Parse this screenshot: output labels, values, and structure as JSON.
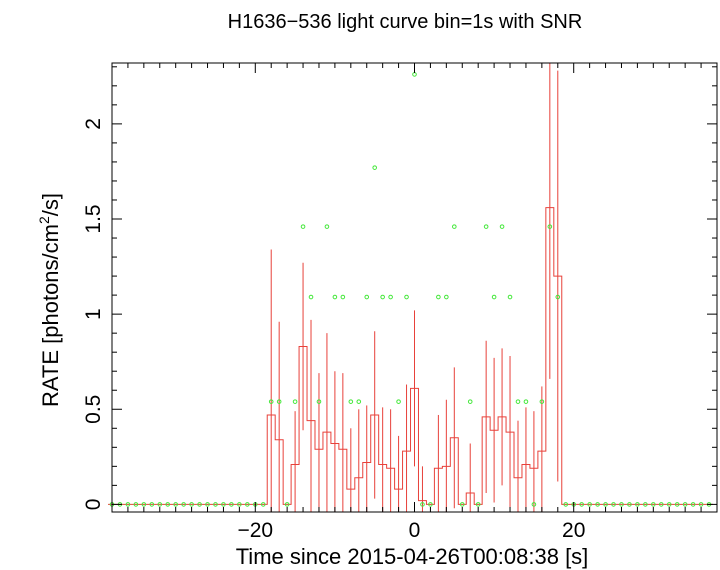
{
  "chart_data": {
    "type": "line",
    "title": "H1636−536 light curve bin=1s with SNR",
    "xlabel": "Time since 2015-04-26T00:08:38 [s]",
    "ylabel_parts": [
      "RATE [photons/cm",
      "2",
      "/s]"
    ],
    "xlim": [
      -38,
      38
    ],
    "ylim": [
      -0.04,
      2.32
    ],
    "x_ticks": [
      -20,
      0,
      20
    ],
    "x_tick_labels": [
      "−20",
      "0",
      "20"
    ],
    "y_ticks": [
      0,
      0.5,
      1,
      1.5,
      2
    ],
    "y_tick_labels": [
      "0",
      "0.5",
      "1",
      "1.5",
      "2"
    ],
    "x_minor_step": 2,
    "y_minor_step": 0.1,
    "grid": false,
    "colors": {
      "rate": "#e8413a",
      "snr": "#44e83a",
      "axes": "#000000"
    },
    "series": [
      {
        "style": "step",
        "bin_width": 1,
        "x": [
          -38,
          -37,
          -36,
          -35,
          -34,
          -33,
          -32,
          -31,
          -30,
          -29,
          -28,
          -27,
          -26,
          -25,
          -24,
          -23,
          -22,
          -21,
          -20,
          -19,
          -18,
          -17,
          -16,
          -15,
          -14,
          -13,
          -12,
          -11,
          -10,
          -9,
          -8,
          -7,
          -6,
          -5,
          -4,
          -3,
          -2,
          -1,
          0,
          1,
          2,
          3,
          4,
          5,
          6,
          7,
          8,
          9,
          10,
          11,
          12,
          13,
          14,
          15,
          16,
          17,
          18,
          19,
          20,
          21,
          22,
          23,
          24,
          25,
          26,
          27,
          28,
          29,
          30,
          31,
          32,
          33,
          34,
          35,
          36,
          37
        ],
        "values": [
          0,
          0,
          0,
          0,
          0,
          0,
          0,
          0,
          0,
          0,
          0,
          0,
          0,
          0,
          0,
          0,
          0,
          0,
          0,
          0,
          0.47,
          0.34,
          0,
          0.21,
          0.83,
          0.44,
          0.29,
          0.38,
          0.32,
          0.29,
          0.08,
          0.14,
          0.22,
          0.47,
          0.21,
          0.19,
          0.08,
          0.28,
          0.61,
          0.02,
          0,
          0.19,
          0.2,
          0.35,
          0,
          0.06,
          0,
          0.46,
          0.39,
          0.46,
          0.38,
          0.14,
          0.21,
          0.19,
          0.28,
          1.56,
          1.2,
          0,
          0,
          0,
          0,
          0,
          0,
          0,
          0,
          0,
          0,
          0,
          0,
          0,
          0,
          0,
          0,
          0,
          0,
          0
        ],
        "errors": [
          0,
          0,
          0,
          0,
          0,
          0,
          0,
          0,
          0,
          0,
          0,
          0,
          0,
          0,
          0,
          0,
          0,
          0,
          0,
          0,
          0.87,
          0.62,
          0,
          0.28,
          0.44,
          0.53,
          0.4,
          0.52,
          0.38,
          0.4,
          0.32,
          0.36,
          0.3,
          0.44,
          0.3,
          0.31,
          0.28,
          0.35,
          0.41,
          0.18,
          0,
          0.28,
          0.35,
          0.37,
          0,
          0.26,
          0,
          0.4,
          0.38,
          0.36,
          0.4,
          0.3,
          0.3,
          0.3,
          0.34,
          0.9,
          1.08,
          0,
          0,
          0,
          0,
          0,
          0,
          0,
          0,
          0,
          0,
          0,
          0,
          0,
          0,
          0,
          0,
          0,
          0,
          0
        ]
      },
      {
        "style": "points",
        "x": [
          -38,
          -37,
          -36,
          -35,
          -34,
          -33,
          -32,
          -31,
          -30,
          -29,
          -28,
          -27,
          -26,
          -25,
          -24,
          -23,
          -22,
          -21,
          -20,
          -19,
          -18,
          -17,
          -16,
          -15,
          -14,
          -13,
          -12,
          -11,
          -10,
          -9,
          -8,
          -7,
          -6,
          -5,
          -4,
          -3,
          -2,
          -1,
          0,
          1,
          2,
          3,
          4,
          5,
          6,
          7,
          8,
          9,
          10,
          11,
          12,
          13,
          14,
          15,
          16,
          17,
          18,
          19,
          20,
          21,
          22,
          23,
          24,
          25,
          26,
          27,
          28,
          29,
          30,
          31,
          32,
          33,
          34,
          35,
          36,
          37
        ],
        "values": [
          0,
          0,
          0,
          0,
          0,
          0,
          0,
          0,
          0,
          0,
          0,
          0,
          0,
          0,
          0,
          0,
          0,
          0,
          0,
          0,
          0.54,
          0.54,
          0,
          0.54,
          1.46,
          1.09,
          0.54,
          1.46,
          1.09,
          1.09,
          0.54,
          0.54,
          1.09,
          1.77,
          1.09,
          1.09,
          0.54,
          1.09,
          2.26,
          0,
          0,
          1.09,
          1.09,
          1.46,
          0,
          0.54,
          0,
          1.46,
          1.09,
          1.46,
          1.09,
          0.54,
          0.54,
          0,
          0.54,
          1.46,
          1.09,
          0,
          0,
          0,
          0,
          0,
          0,
          0,
          0,
          0,
          0,
          0,
          0,
          0,
          0,
          0,
          0,
          0,
          0,
          0
        ]
      }
    ]
  }
}
